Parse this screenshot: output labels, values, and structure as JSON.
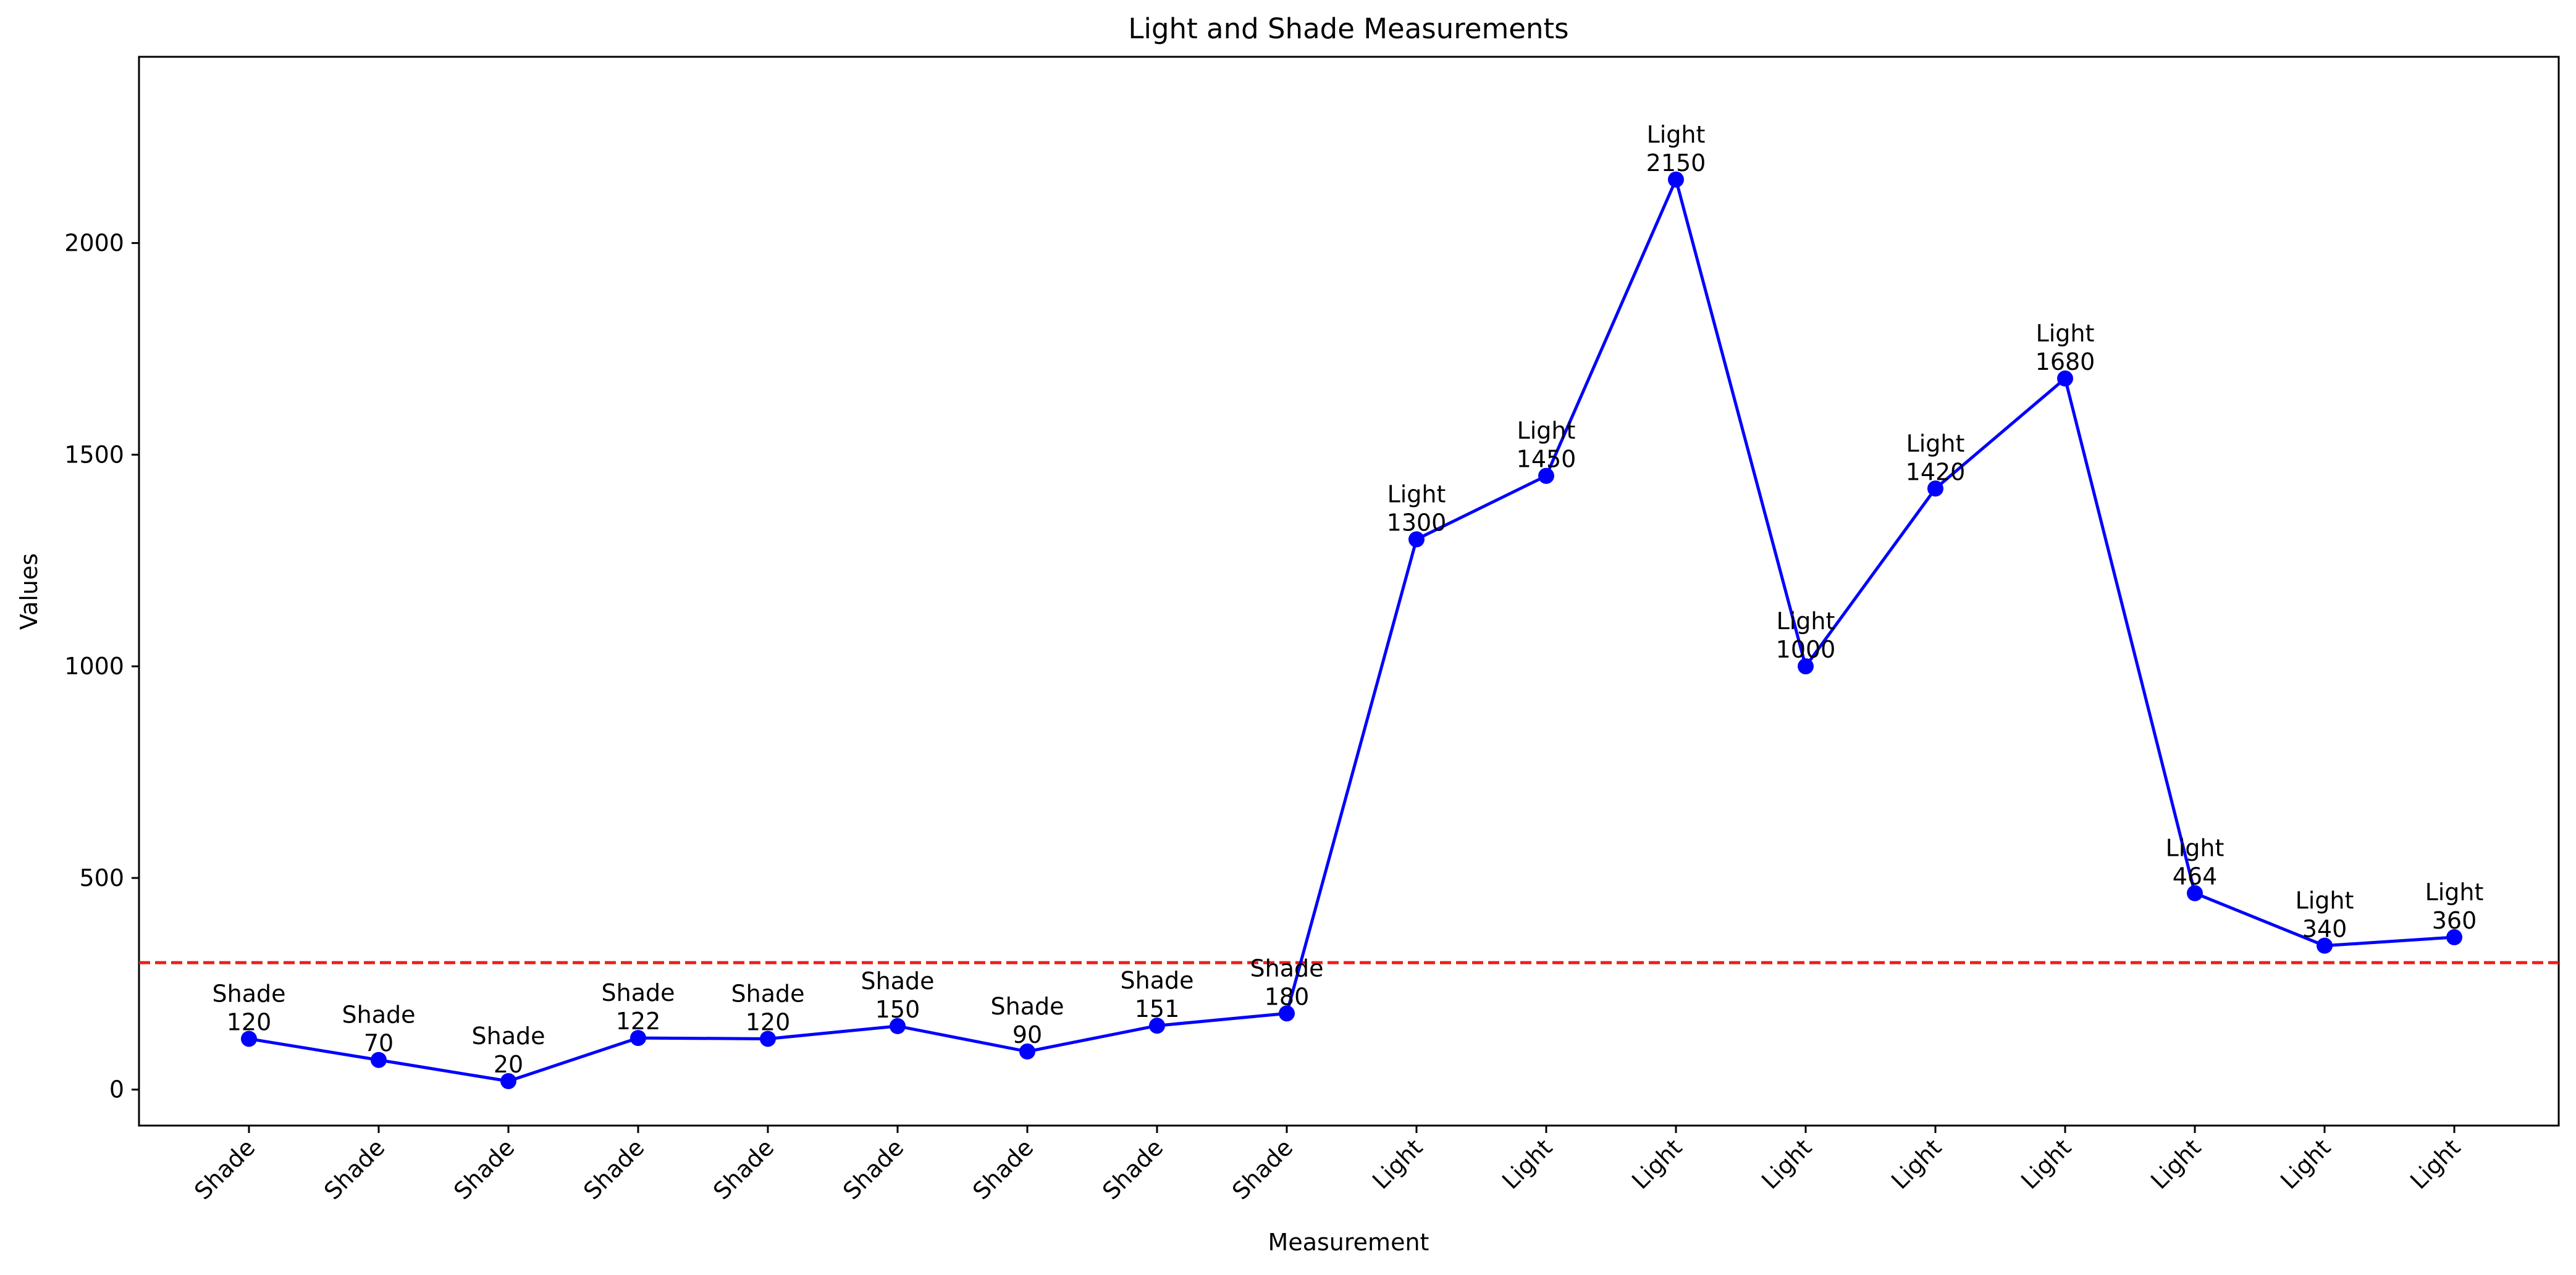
{
  "chart_data": {
    "type": "line",
    "title": "Light and Shade Measurements",
    "xlabel": "Measurement",
    "ylabel": "Values",
    "ylim": [
      -85,
      2440
    ],
    "yticks": [
      0,
      500,
      1000,
      1500,
      2000
    ],
    "grid": false,
    "categories": [
      "Shade",
      "Shade",
      "Shade",
      "Shade",
      "Shade",
      "Shade",
      "Shade",
      "Shade",
      "Shade",
      "Light",
      "Light",
      "Light",
      "Light",
      "Light",
      "Light",
      "Light",
      "Light",
      "Light"
    ],
    "values": [
      120,
      70,
      20,
      122,
      120,
      150,
      90,
      151,
      180,
      1300,
      1450,
      2150,
      1000,
      1420,
      1680,
      464,
      340,
      360
    ],
    "threshold": 300,
    "colors": {
      "line": "#0000ff",
      "marker": "#0000ff",
      "threshold": "#ee1c1c"
    }
  }
}
